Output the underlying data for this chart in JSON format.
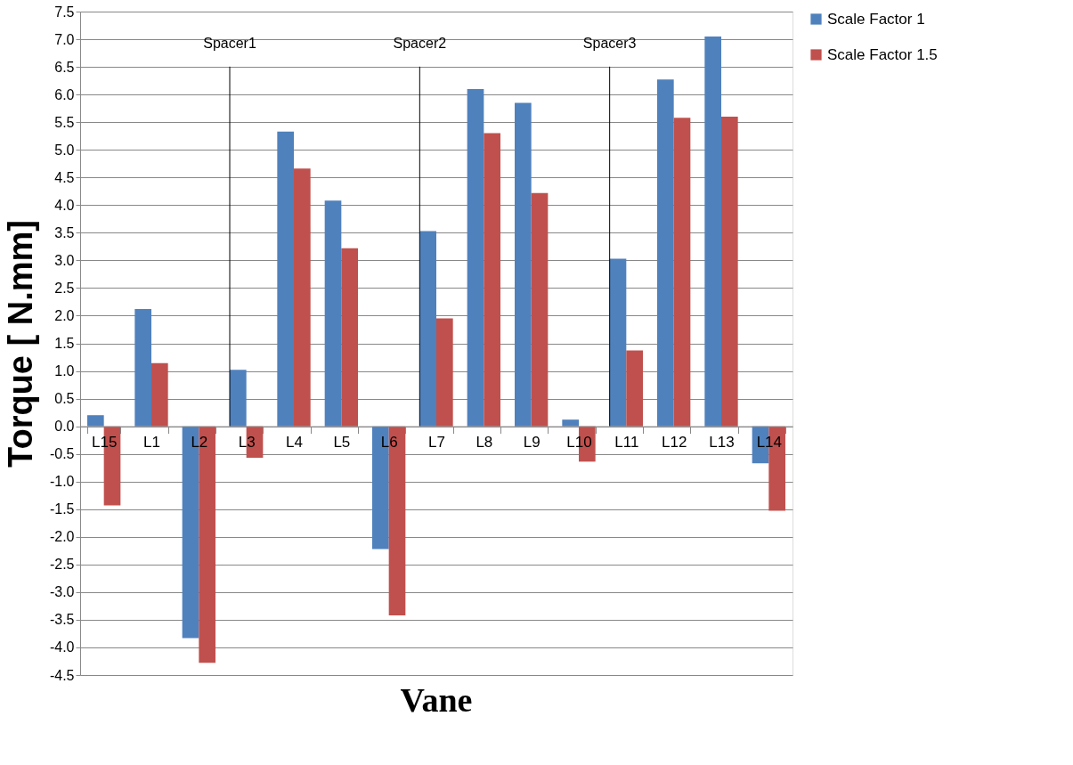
{
  "chart_data": {
    "type": "bar",
    "xlabel": "Vane",
    "ylabel": "Torque [ N.mm]",
    "categories": [
      "L15",
      "L1",
      "L2",
      "L3",
      "L4",
      "L5",
      "L6",
      "L7",
      "L8",
      "L9",
      "L10",
      "L11",
      "L12",
      "L13",
      "L14"
    ],
    "series": [
      {
        "name": "Scale Factor 1",
        "color": "#4f81bd",
        "values": [
          0.2,
          2.12,
          -3.83,
          1.02,
          5.33,
          4.08,
          -2.22,
          3.53,
          6.1,
          5.85,
          0.12,
          3.03,
          6.27,
          7.05,
          -0.67
        ]
      },
      {
        "name": "Scale Factor 1.5",
        "color": "#c0504d",
        "values": [
          -1.43,
          1.14,
          -4.28,
          -0.57,
          4.66,
          3.22,
          -3.42,
          1.95,
          5.3,
          4.22,
          -0.64,
          1.37,
          5.58,
          5.6,
          -1.53
        ]
      }
    ],
    "ylim": [
      -4.5,
      7.5
    ],
    "yticks": [
      {
        "value": -4.5,
        "label": "-4.5"
      },
      {
        "value": -4,
        "label": "-4.0"
      },
      {
        "value": -3.5,
        "label": "-3.5"
      },
      {
        "value": -3,
        "label": "-3.0"
      },
      {
        "value": -2.5,
        "label": "-2.5"
      },
      {
        "value": -2,
        "label": "-2.0"
      },
      {
        "value": -1.5,
        "label": "-1.5"
      },
      {
        "value": -1,
        "label": "-1.0"
      },
      {
        "value": -0.5,
        "label": "-0.5"
      },
      {
        "value": 0,
        "label": "0.0"
      },
      {
        "value": 0.5,
        "label": "0.5"
      },
      {
        "value": 1,
        "label": "1.0"
      },
      {
        "value": 1.5,
        "label": "1.5"
      },
      {
        "value": 2,
        "label": "2.0"
      },
      {
        "value": 2.5,
        "label": "2.5"
      },
      {
        "value": 3,
        "label": "3.0"
      },
      {
        "value": 3.5,
        "label": "3.5"
      },
      {
        "value": 4,
        "label": "4.0"
      },
      {
        "value": 4.5,
        "label": "4.5"
      },
      {
        "value": 5,
        "label": "5.0"
      },
      {
        "value": 5.5,
        "label": "5.5"
      },
      {
        "value": 6,
        "label": "6.0"
      },
      {
        "value": 6.5,
        "label": "6.5"
      },
      {
        "value": 7,
        "label": "7.0"
      },
      {
        "value": 7.5,
        "label": "7.5"
      }
    ],
    "ref_lines": [
      {
        "axis": "x",
        "value": "L3",
        "label": "Spacer1",
        "color": "#000000"
      },
      {
        "axis": "x",
        "value": "L7",
        "label": "Spacer2",
        "color": "#000000"
      },
      {
        "axis": "x",
        "value": "L11",
        "label": "Spacer3",
        "color": "#000000"
      }
    ],
    "grid": "y",
    "legend": "right"
  }
}
